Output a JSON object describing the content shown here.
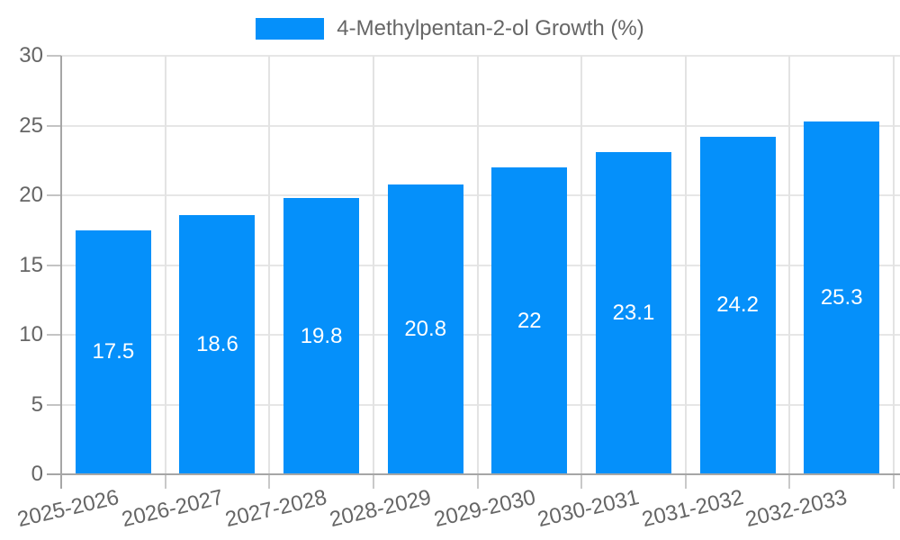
{
  "chart_data": {
    "type": "bar",
    "title": "",
    "legend": {
      "position": "top",
      "entries": [
        {
          "label": "4-Methylpentan-2-ol Growth (%)",
          "color": "#0590fa"
        }
      ]
    },
    "categories": [
      "2025-2026",
      "2026-2027",
      "2027-2028",
      "2028-2029",
      "2029-2030",
      "2030-2031",
      "2031-2032",
      "2032-2033"
    ],
    "series": [
      {
        "name": "4-Methylpentan-2-ol Growth (%)",
        "values": [
          17.5,
          18.6,
          19.8,
          20.8,
          22,
          23.1,
          24.2,
          25.3
        ]
      }
    ],
    "values": [
      17.5,
      18.6,
      19.8,
      20.8,
      22,
      23.1,
      24.2,
      25.3
    ],
    "xlabel": "",
    "ylabel": "",
    "ylim": [
      0,
      30
    ],
    "yticks": [
      0,
      5,
      10,
      15,
      20,
      25,
      30
    ],
    "grid": true,
    "bar_color": "#0590fa",
    "value_label_color": "#ffffff",
    "axis_text_color": "#666666",
    "value_labels_inside_bars": true
  }
}
